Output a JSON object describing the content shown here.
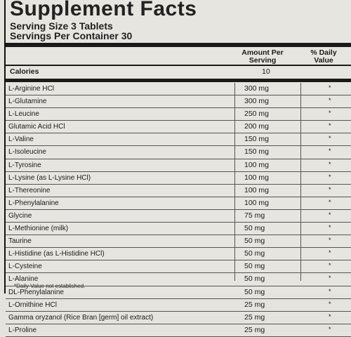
{
  "title": "Supplement Facts",
  "serving_size": "Serving Size 3 Tablets",
  "servings_per_container": "Servings Per Container 30",
  "header": {
    "amount_per": "Amount Per",
    "serving": "Serving",
    "daily": "% Daily",
    "value": "Value"
  },
  "calories": {
    "name": "Calories",
    "amount": "10"
  },
  "rows": [
    {
      "name": "L-Arginine HCl",
      "amount": "300 mg",
      "dv": "*"
    },
    {
      "name": "L-Glutamine",
      "amount": "300 mg",
      "dv": "*"
    },
    {
      "name": "L-Leucine",
      "amount": "250 mg",
      "dv": "*"
    },
    {
      "name": "Glutamic Acid HCl",
      "amount": "200 mg",
      "dv": "*"
    },
    {
      "name": "L-Valine",
      "amount": "150 mg",
      "dv": "*"
    },
    {
      "name": "L-Isoleucine",
      "amount": "150 mg",
      "dv": "*"
    },
    {
      "name": "L-Tyrosine",
      "amount": "100 mg",
      "dv": "*"
    },
    {
      "name": "L-Lysine (as L-Lysine HCl)",
      "amount": "100 mg",
      "dv": "*"
    },
    {
      "name": "L-Thereonine",
      "amount": "100 mg",
      "dv": "*"
    },
    {
      "name": "L-Phenylalanine",
      "amount": "100 mg",
      "dv": "*"
    },
    {
      "name": "Glycine",
      "amount": "75 mg",
      "dv": "*"
    },
    {
      "name": "L-Methionine (milk)",
      "amount": "50 mg",
      "dv": "*"
    },
    {
      "name": "Taurine",
      "amount": "50 mg",
      "dv": "*"
    },
    {
      "name": "L-Histidine (as L-Histidine HCl)",
      "amount": "50 mg",
      "dv": "*"
    },
    {
      "name": "L-Cysteine",
      "amount": "50 mg",
      "dv": "*"
    },
    {
      "name": "L-Alanine",
      "amount": "50 mg",
      "dv": "*"
    },
    {
      "name": "DL-Phenylalanine",
      "amount": "50 mg",
      "dv": "*"
    },
    {
      "name": "L-Ornithine HCl",
      "amount": "25 mg",
      "dv": "*"
    },
    {
      "name": "Gamma oryzanol (Rice Bran [germ] oil extract)",
      "amount": "25 mg",
      "dv": "*"
    },
    {
      "name": "L-Proline",
      "amount": "25 mg",
      "dv": "*"
    }
  ],
  "footnote": "*Daily Value not established."
}
